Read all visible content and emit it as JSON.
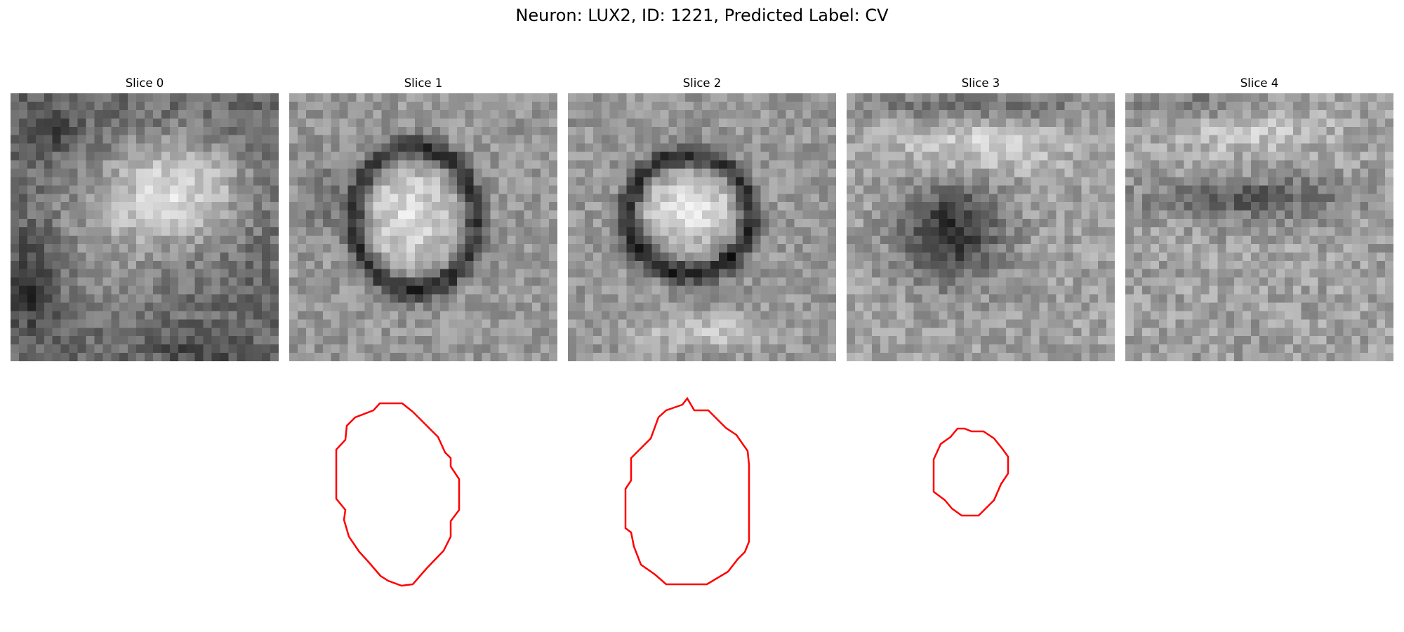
{
  "title": "Neuron: LUX2, ID: 1221, Predicted Label: CV",
  "contour_color": "#ff0000",
  "colormap": "gray",
  "slices": [
    {
      "label": "Slice 0",
      "has_contour": false
    },
    {
      "label": "Slice 1",
      "has_contour": true
    },
    {
      "label": "Slice 2",
      "has_contour": true
    },
    {
      "label": "Slice 3",
      "has_contour": true
    },
    {
      "label": "Slice 4",
      "has_contour": false
    }
  ]
}
